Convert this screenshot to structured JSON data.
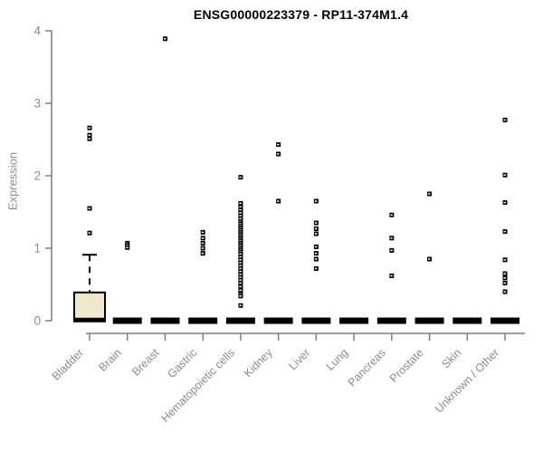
{
  "title": "ENSG00000223379 - RP11-374M1.4",
  "ylabel": "Expression",
  "colors": {
    "axis": "#7f7f7f",
    "tick_label": "#8c8c8c",
    "category_label": "#8c8c8c",
    "title": "#000000",
    "box_fill": "#EEE8CD",
    "box_stroke": "#000000",
    "point": "#000000"
  },
  "chart_data": {
    "type": "boxplot",
    "title": "ENSG00000223379 - RP11-374M1.4",
    "xlabel": "",
    "ylabel": "Expression",
    "ylim": [
      0,
      4
    ],
    "yticks": [
      0,
      1,
      2,
      3,
      4
    ],
    "grid": false,
    "legend": "none",
    "categories": [
      "Bladder",
      "Brain",
      "Breast",
      "Gastric",
      "Hematopoietic cells",
      "Kidney",
      "Liver",
      "Lung",
      "Pancreas",
      "Prostate",
      "Skin",
      "Unknown / Other"
    ],
    "boxes": [
      {
        "category": "Bladder",
        "q1": 0,
        "median": 0.01,
        "q3": 0.39,
        "whisker_low": 0,
        "whisker_high": 0.91,
        "outliers": [
          2.66,
          2.56,
          2.51,
          1.55,
          1.21
        ]
      },
      {
        "category": "Brain",
        "q1": 0,
        "median": 0,
        "q3": 0,
        "whisker_low": 0,
        "whisker_high": 0,
        "outliers": [
          1.07,
          1.04,
          1.01
        ]
      },
      {
        "category": "Breast",
        "q1": 0,
        "median": 0,
        "q3": 0,
        "whisker_low": 0,
        "whisker_high": 0,
        "outliers": [
          3.89
        ]
      },
      {
        "category": "Gastric",
        "q1": 0,
        "median": 0,
        "q3": 0,
        "whisker_low": 0,
        "whisker_high": 0,
        "outliers": [
          1.22,
          1.14,
          1.07,
          1.0,
          0.93
        ]
      },
      {
        "category": "Hematopoietic cells",
        "q1": 0,
        "median": 0,
        "q3": 0,
        "whisker_low": 0,
        "whisker_high": 0,
        "outliers": [
          1.98,
          1.62,
          1.57,
          1.53,
          1.49,
          1.45,
          1.41,
          1.37,
          1.34,
          1.31,
          1.28,
          1.25,
          1.22,
          1.19,
          1.16,
          1.13,
          1.1,
          1.07,
          1.04,
          1.01,
          0.98,
          0.95,
          0.92,
          0.88,
          0.84,
          0.8,
          0.76,
          0.72,
          0.68,
          0.64,
          0.6,
          0.56,
          0.52,
          0.47,
          0.42,
          0.37,
          0.34,
          0.21
        ]
      },
      {
        "category": "Kidney",
        "q1": 0,
        "median": 0,
        "q3": 0,
        "whisker_low": 0,
        "whisker_high": 0,
        "outliers": [
          2.43,
          2.3,
          1.65
        ]
      },
      {
        "category": "Liver",
        "q1": 0,
        "median": 0,
        "q3": 0,
        "whisker_low": 0,
        "whisker_high": 0,
        "outliers": [
          1.65,
          1.35,
          1.27,
          1.2,
          1.02,
          0.93,
          0.85,
          0.72
        ]
      },
      {
        "category": "Lung",
        "q1": 0,
        "median": 0,
        "q3": 0,
        "whisker_low": 0,
        "whisker_high": 0,
        "outliers": []
      },
      {
        "category": "Pancreas",
        "q1": 0,
        "median": 0,
        "q3": 0,
        "whisker_low": 0,
        "whisker_high": 0,
        "outliers": [
          1.46,
          1.14,
          0.97,
          0.62
        ]
      },
      {
        "category": "Prostate",
        "q1": 0,
        "median": 0,
        "q3": 0,
        "whisker_low": 0,
        "whisker_high": 0,
        "outliers": [
          1.75,
          0.85
        ]
      },
      {
        "category": "Skin",
        "q1": 0,
        "median": 0,
        "q3": 0,
        "whisker_low": 0,
        "whisker_high": 0,
        "outliers": []
      },
      {
        "category": "Unknown / Other",
        "q1": 0,
        "median": 0,
        "q3": 0,
        "whisker_low": 0,
        "whisker_high": 0,
        "outliers": [
          2.77,
          2.01,
          1.63,
          1.23,
          0.84,
          0.65,
          0.59,
          0.52,
          0.4
        ]
      }
    ]
  }
}
